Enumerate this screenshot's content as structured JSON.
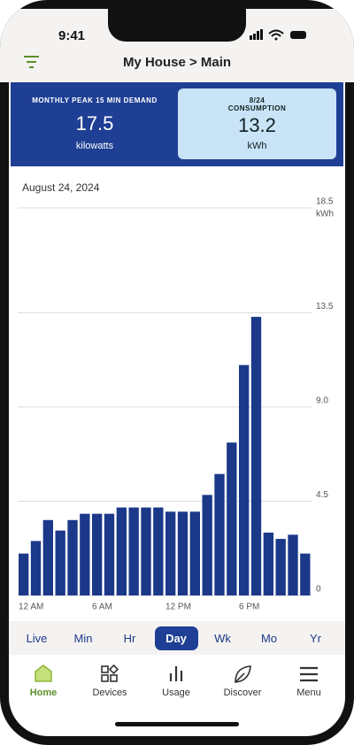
{
  "status_bar": {
    "time": "9:41"
  },
  "header": {
    "title": "My House > Main"
  },
  "cards": [
    {
      "label": "MONTHLY PEAK 15 MIN DEMAND",
      "value": 17.5,
      "unit": "kilowatts"
    },
    {
      "date": "8/24",
      "label": "CONSUMPTION",
      "value": 13.2,
      "unit": "kWh"
    }
  ],
  "chart_data": {
    "type": "bar",
    "title": "August 24, 2024",
    "ylabel": "kWh",
    "color": "#1b3889",
    "categories": [
      "12 AM",
      null,
      null,
      null,
      null,
      null,
      "6 AM",
      null,
      null,
      null,
      null,
      null,
      "12 PM",
      null,
      null,
      null,
      null,
      null,
      "6 PM",
      null,
      null,
      null,
      null,
      null
    ],
    "values": [
      2.0,
      2.6,
      3.6,
      3.1,
      3.6,
      3.9,
      3.9,
      3.9,
      4.2,
      4.2,
      4.2,
      4.2,
      4.0,
      4.0,
      4.0,
      4.8,
      5.8,
      7.3,
      11.0,
      13.3,
      3.0,
      2.7,
      2.9,
      2.0
    ],
    "ylim": [
      0,
      18.5
    ],
    "yticks": [
      0,
      4.5,
      {
        "value": 9,
        "label": "9.0"
      },
      13.5,
      18.5
    ],
    "grid": true,
    "yaxis_side": "right"
  },
  "tabs": [
    {
      "label": "Live"
    },
    {
      "label": "Min"
    },
    {
      "label": "Hr"
    },
    {
      "label": "Day",
      "selected": true
    },
    {
      "label": "Wk"
    },
    {
      "label": "Mo"
    },
    {
      "label": "Yr"
    }
  ],
  "nav": [
    {
      "label": "Home",
      "active": true
    },
    {
      "label": "Devices"
    },
    {
      "label": "Usage"
    },
    {
      "label": "Discover"
    },
    {
      "label": "Menu"
    }
  ]
}
